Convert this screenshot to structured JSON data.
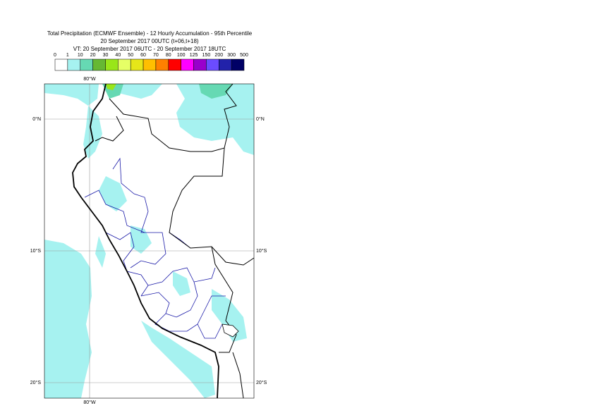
{
  "header": {
    "lines": [
      "Total Precipitation (ECMWF Ensemble) - 12 Hourly Accumulation - 95th Percentile",
      "20 September 2017 00UTC (t+06,t+18)",
      "VT: 20 September 2017 06UTC - 20 September 2017 18UTC"
    ]
  },
  "legend": {
    "levels": [
      0,
      1,
      10,
      20,
      30,
      40,
      50,
      60,
      70,
      80,
      100,
      125,
      150,
      200,
      300,
      500
    ],
    "colors": [
      "#ffffff",
      "#a6f2f0",
      "#66d9b3",
      "#66b833",
      "#99e619",
      "#e6ff66",
      "#e6e619",
      "#ffbf00",
      "#ff8000",
      "#ff0000",
      "#ff00ff",
      "#9900cc",
      "#6b4cff",
      "#2222aa",
      "#000066"
    ]
  },
  "map": {
    "lon_labels": [
      "80°W"
    ],
    "lat_labels": [
      "0°N",
      "10°S",
      "20°S"
    ]
  }
}
